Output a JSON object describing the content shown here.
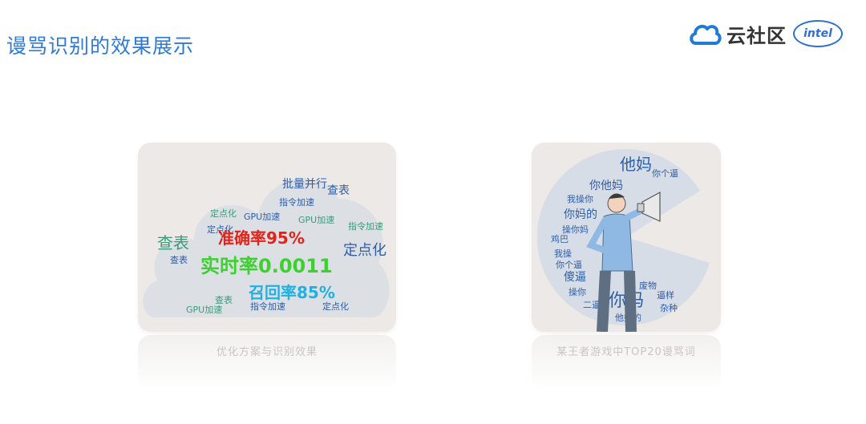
{
  "page": {
    "title": "谩骂识别的效果展示"
  },
  "logo": {
    "text": "云社区",
    "badge": "intel"
  },
  "card_left": {
    "metrics": {
      "precision": "准确率95%",
      "realtime": "实时率0.0011",
      "recall": "召回率85%"
    },
    "words": [
      "查表",
      "定点化",
      "GPU加速",
      "指令加速",
      "批量并行",
      "查表",
      "指令加速",
      "定点化",
      "GPU加速",
      "查表",
      "指令加速",
      "定点化",
      "GPU加速",
      "查表",
      "定点化"
    ],
    "caption": "优化方案与识别效果"
  },
  "card_right": {
    "words": [
      "他妈",
      "你他妈",
      "我操你",
      "你妈的",
      "操你妈",
      "鸡巴",
      "我操",
      "你个逼",
      "傻逼",
      "操你",
      "二逼",
      "你妈",
      "他妈的",
      "废物",
      "逼样",
      "杂种",
      "你个逼"
    ],
    "caption": "某王者游戏中TOP20谩骂词"
  },
  "colors": {
    "title": "#2d7bd8",
    "precision": "#e2231a",
    "realtime": "#3bd22e",
    "recall": "#1fb1e3",
    "word_blue": "#2f5ea8",
    "word_green": "#3c9a7a"
  }
}
